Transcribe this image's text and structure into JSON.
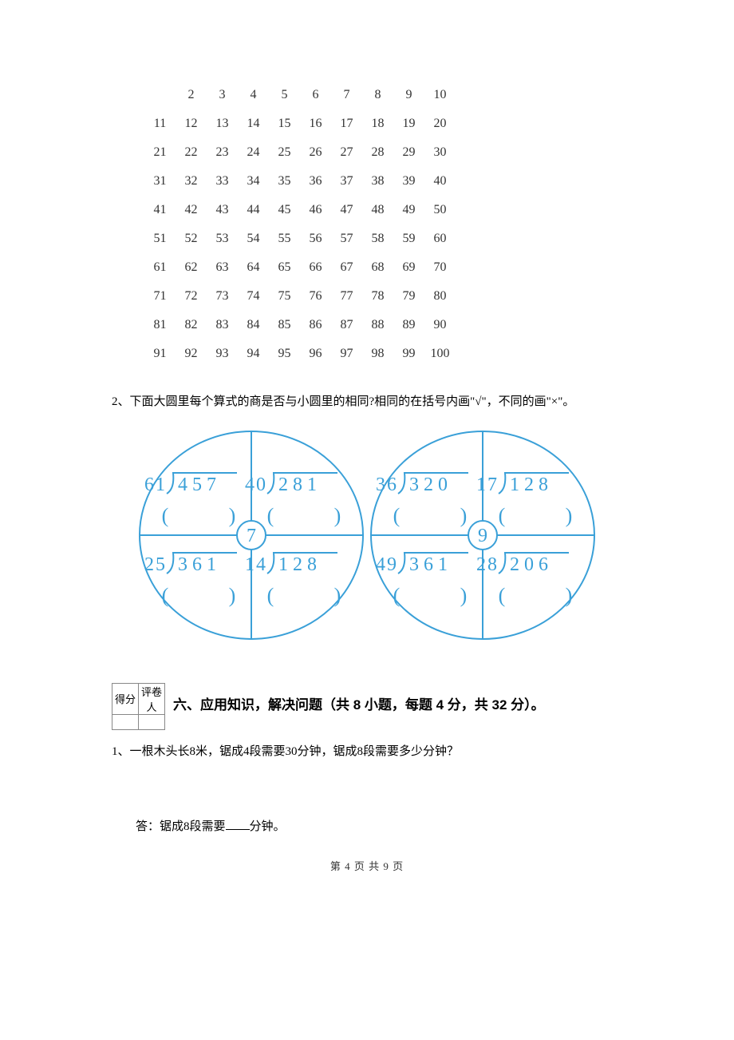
{
  "number_grid": {
    "rows": [
      [
        "",
        "2",
        "3",
        "4",
        "5",
        "6",
        "7",
        "8",
        "9",
        "10"
      ],
      [
        "11",
        "12",
        "13",
        "14",
        "15",
        "16",
        "17",
        "18",
        "19",
        "20"
      ],
      [
        "21",
        "22",
        "23",
        "24",
        "25",
        "26",
        "27",
        "28",
        "29",
        "30"
      ],
      [
        "31",
        "32",
        "33",
        "34",
        "35",
        "36",
        "37",
        "38",
        "39",
        "40"
      ],
      [
        "41",
        "42",
        "43",
        "44",
        "45",
        "46",
        "47",
        "48",
        "49",
        "50"
      ],
      [
        "51",
        "52",
        "53",
        "54",
        "55",
        "56",
        "57",
        "58",
        "59",
        "60"
      ],
      [
        "61",
        "62",
        "63",
        "64",
        "65",
        "66",
        "67",
        "68",
        "69",
        "70"
      ],
      [
        "71",
        "72",
        "73",
        "74",
        "75",
        "76",
        "77",
        "78",
        "79",
        "80"
      ],
      [
        "81",
        "82",
        "83",
        "84",
        "85",
        "86",
        "87",
        "88",
        "89",
        "90"
      ],
      [
        "91",
        "92",
        "93",
        "94",
        "95",
        "96",
        "97",
        "98",
        "99",
        "100"
      ]
    ],
    "font_size": 16,
    "color": "#333333"
  },
  "q2_text": "2、下面大圆里每个算式的商是否与小圆里的相同?相同的在括号内画\"√\"，不同的画\"×\"。",
  "circles": {
    "stroke": "#3aa0d8",
    "stroke_width": 2,
    "text_color": "#3aa0d8",
    "digit_font_size": 24,
    "left": {
      "center_value": "7",
      "quads": [
        {
          "divisor": "61",
          "dividend": "4 5 7"
        },
        {
          "divisor": "40",
          "dividend": "2 8 1"
        },
        {
          "divisor": "25",
          "dividend": "3 6 1"
        },
        {
          "divisor": "14",
          "dividend": "1 2 8"
        }
      ]
    },
    "right": {
      "center_value": "9",
      "quads": [
        {
          "divisor": "36",
          "dividend": "3 2 0"
        },
        {
          "divisor": "17",
          "dividend": "1 2 8"
        },
        {
          "divisor": "49",
          "dividend": "3 6 1"
        },
        {
          "divisor": "28",
          "dividend": "2 0 6"
        }
      ]
    }
  },
  "score_labels": {
    "score": "得分",
    "grader": "评卷人"
  },
  "section6_title": "六、应用知识，解决问题（共 8 小题，每题 4 分，共 32 分）。",
  "q6_1_text": "1、一根木头长8米，锯成4段需要30分钟，锯成8段需要多少分钟？",
  "q6_1_answer_prefix": "答：锯成8段需要",
  "q6_1_answer_suffix": "分钟。",
  "footer_text": "第 4 页 共 9 页",
  "page_bg": "#ffffff"
}
